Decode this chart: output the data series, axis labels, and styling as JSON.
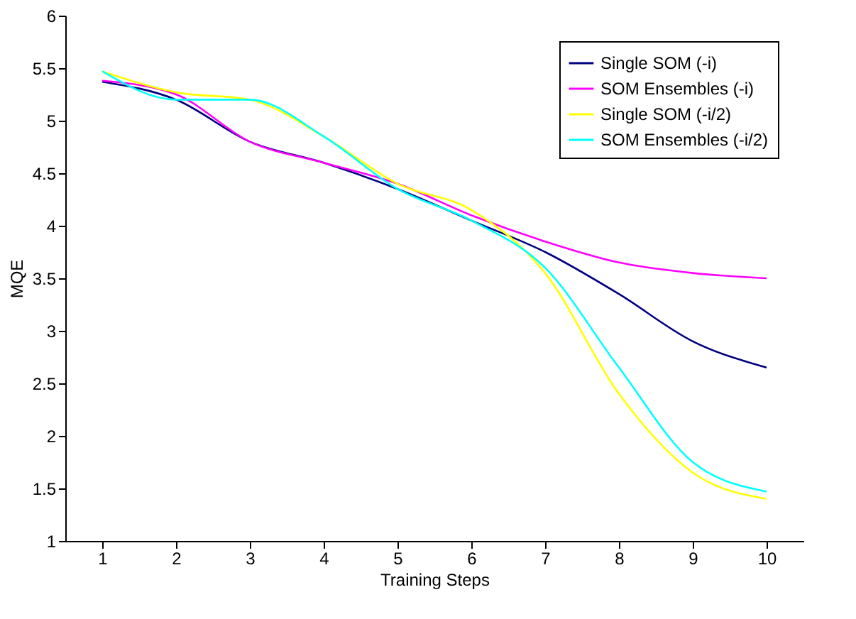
{
  "chart_data": {
    "type": "line",
    "xlabel": "Training Steps",
    "ylabel": "MQE",
    "categories": [
      "1",
      "2",
      "3",
      "4",
      "5",
      "6",
      "7",
      "8",
      "9",
      "10"
    ],
    "ylim": [
      1,
      6
    ],
    "yticks": [
      1,
      1.5,
      2,
      2.5,
      3,
      3.5,
      4,
      4.5,
      5,
      5.5,
      6
    ],
    "grid": false,
    "legend": "top right",
    "marker": "none",
    "line_style": "solid",
    "series": [
      {
        "name": "Single SOM (-i)",
        "color": "#000080",
        "values": [
          5.37,
          5.2,
          4.8,
          4.6,
          4.35,
          4.05,
          3.75,
          3.35,
          2.9,
          2.65
        ]
      },
      {
        "name": "SOM Ensembles (-i)",
        "color": "#ff00ff",
        "values": [
          5.38,
          5.25,
          4.8,
          4.6,
          4.4,
          4.1,
          3.85,
          3.65,
          3.55,
          3.5
        ]
      },
      {
        "name": "Single SOM (-i/2)",
        "color": "#ffff00",
        "values": [
          5.47,
          5.27,
          5.2,
          4.85,
          4.4,
          4.15,
          3.55,
          2.4,
          1.65,
          1.4
        ]
      },
      {
        "name": "SOM Ensembles (-i/2)",
        "color": "#00ffff",
        "values": [
          5.47,
          5.2,
          5.2,
          4.85,
          4.35,
          4.05,
          3.6,
          2.65,
          1.75,
          1.47
        ]
      }
    ]
  }
}
